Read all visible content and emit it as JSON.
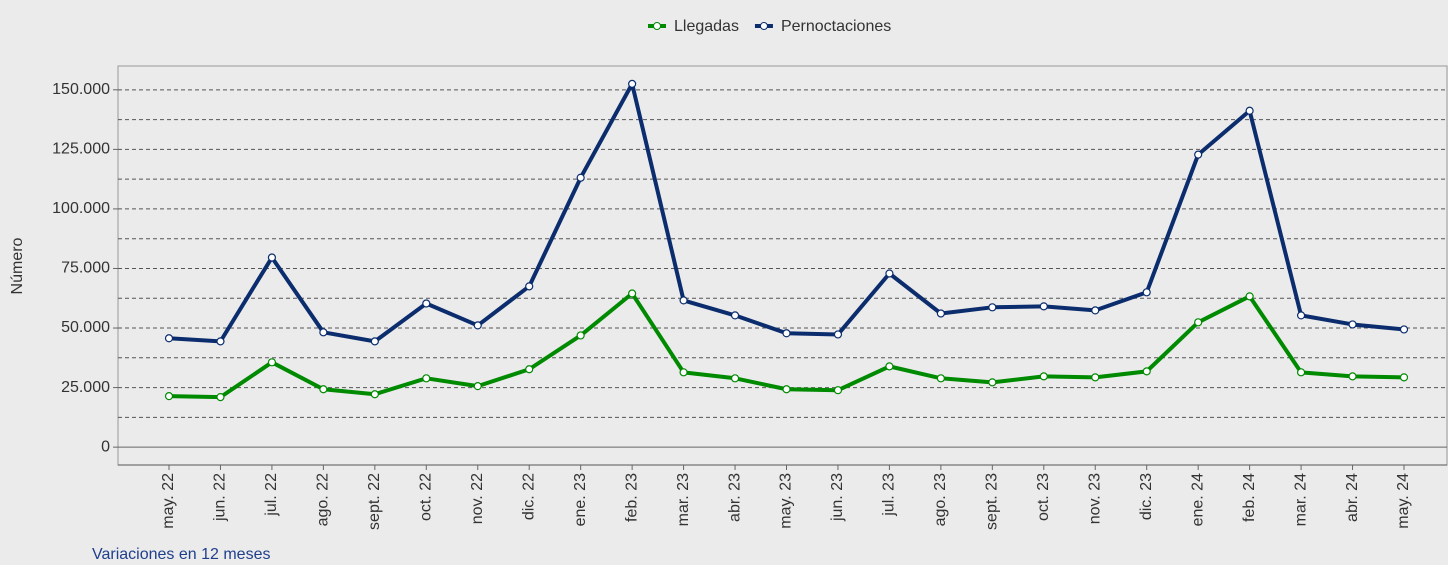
{
  "chart_data": {
    "type": "line",
    "y_axis_label": "Número",
    "categories": [
      "may. 22",
      "jun. 22",
      "jul. 22",
      "ago. 22",
      "sept. 22",
      "oct. 22",
      "nov. 22",
      "dic. 22",
      "ene. 23",
      "feb. 23",
      "mar. 23",
      "abr. 23",
      "may. 23",
      "jun. 23",
      "jul. 23",
      "ago. 23",
      "sept. 23",
      "oct. 23",
      "nov. 23",
      "dic. 23",
      "ene. 24",
      "feb. 24",
      "mar. 24",
      "abr. 24",
      "may. 24"
    ],
    "series": [
      {
        "name": "Llegadas",
        "color": "#008a00",
        "values": [
          21400,
          21000,
          35600,
          24300,
          22200,
          28900,
          25600,
          32700,
          46900,
          64500,
          31400,
          28900,
          24300,
          23900,
          33900,
          28900,
          27200,
          29700,
          29300,
          31800,
          52400,
          63300,
          31400,
          29700,
          29300
        ]
      },
      {
        "name": "Pernoctaciones",
        "color": "#0b2d6e",
        "values": [
          45700,
          44400,
          79600,
          48200,
          44400,
          60300,
          51100,
          67500,
          113100,
          152500,
          61600,
          55300,
          47800,
          47300,
          72900,
          56100,
          58700,
          59100,
          57400,
          65000,
          122800,
          141200,
          55300,
          51500,
          49400
        ]
      }
    ],
    "ylim": [
      -7500,
      160000
    ],
    "yticks": [
      0,
      {
        "value": 25000,
        "label": "25.000"
      },
      {
        "value": 50000,
        "label": "50.000"
      },
      {
        "value": 75000,
        "label": "75.000"
      },
      {
        "value": 100000,
        "label": "100.000"
      },
      {
        "value": 125000,
        "label": "125.000"
      },
      {
        "value": 150000,
        "label": "150.000"
      }
    ],
    "minor_yticks": [
      12500,
      37500,
      62500,
      87500,
      112500,
      137500
    ],
    "grid": true,
    "legend": "top"
  },
  "link": "Variaciones en 12 meses"
}
